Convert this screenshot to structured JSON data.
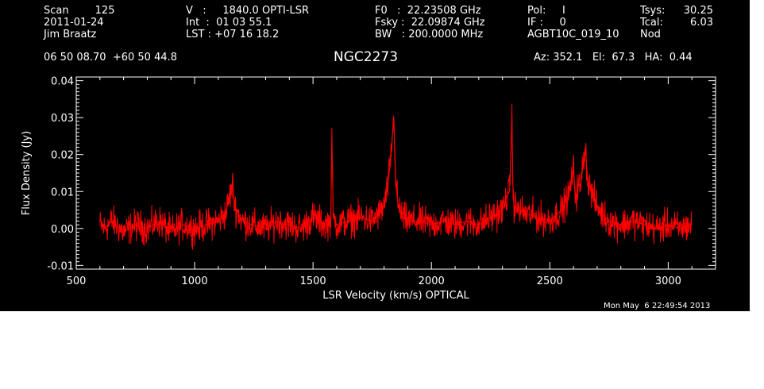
{
  "header": {
    "col1": [
      "Scan        125",
      "2011-01-24",
      "Jim Braatz"
    ],
    "col2": [
      "V   :     1840.0 OPTI-LSR",
      "Int  :  01 03 55.1",
      "LST : +07 16 18.2"
    ],
    "col3": [
      "F0   :  22.23508 GHz",
      "Fsky :  22.09874 GHz",
      "BW   : 200.0000 MHz"
    ],
    "col4": [
      "Pol:     I",
      "IF :     0",
      "AGBT10C_019_10"
    ],
    "col5a": [
      "Tsys:",
      "Tcal:",
      "Nod"
    ],
    "col5b": [
      "30.25",
      "6.03",
      ""
    ],
    "coords": "06 50 08.70  +60 50 44.8",
    "source": "NGC2273",
    "azelha": "Az: 352.1   El:  67.3   HA:  0.44",
    "timestamp": "Mon May  6 22:49:54 2013"
  },
  "colors": {
    "background": "#000000",
    "axes": "#ffffff",
    "trace": "#ff0000"
  },
  "chart_data": {
    "type": "line",
    "title": "NGC2273",
    "xlabel": "LSR Velocity (km/s) OPTICAL",
    "ylabel": "Flux Density (Jy)",
    "xlim": [
      500,
      3200
    ],
    "ylim": [
      -0.011,
      0.041
    ],
    "xticks": [
      500,
      1000,
      1500,
      2000,
      2500,
      3000
    ],
    "yticks": [
      -0.01,
      0.0,
      0.01,
      0.02,
      0.03,
      0.04
    ],
    "ytick_labels": [
      "-0.01",
      "0.00",
      "0.01",
      "0.02",
      "0.03",
      "0.04"
    ],
    "series": [
      {
        "name": "",
        "x": [
          600,
          620,
          650,
          700,
          750,
          800,
          850,
          900,
          950,
          1000,
          1050,
          1100,
          1130,
          1150,
          1160,
          1170,
          1200,
          1240,
          1300,
          1350,
          1400,
          1450,
          1500,
          1550,
          1575,
          1580,
          1585,
          1600,
          1650,
          1700,
          1750,
          1780,
          1800,
          1815,
          1830,
          1840,
          1845,
          1850,
          1860,
          1880,
          1900,
          1950,
          2000,
          2050,
          2100,
          2150,
          2200,
          2250,
          2300,
          2320,
          2330,
          2340,
          2345,
          2350,
          2370,
          2400,
          2450,
          2500,
          2550,
          2580,
          2600,
          2610,
          2620,
          2630,
          2640,
          2650,
          2660,
          2680,
          2700,
          2720,
          2750,
          2800,
          2850,
          2900,
          2950,
          3000,
          3050,
          3100
        ],
        "y": [
          0.001,
          0.0,
          0.002,
          -0.001,
          0.001,
          0.0,
          0.002,
          -0.001,
          0.001,
          0.0,
          0.001,
          0.002,
          0.004,
          0.009,
          0.012,
          0.006,
          0.002,
          0.001,
          0.0,
          0.002,
          0.001,
          0.0,
          0.003,
          0.001,
          0.002,
          0.025,
          0.003,
          0.001,
          0.002,
          0.003,
          0.002,
          0.004,
          0.006,
          0.011,
          0.02,
          0.03,
          0.022,
          0.012,
          0.006,
          0.003,
          0.002,
          0.002,
          0.001,
          0.002,
          0.001,
          0.002,
          0.001,
          0.003,
          0.005,
          0.009,
          0.01,
          0.03,
          0.008,
          0.006,
          0.005,
          0.004,
          0.003,
          0.002,
          0.005,
          0.009,
          0.016,
          0.008,
          0.012,
          0.011,
          0.018,
          0.022,
          0.013,
          0.009,
          0.006,
          0.004,
          0.002,
          0.001,
          0.002,
          0.001,
          0.0,
          0.001,
          0.0,
          0.001
        ]
      }
    ]
  }
}
